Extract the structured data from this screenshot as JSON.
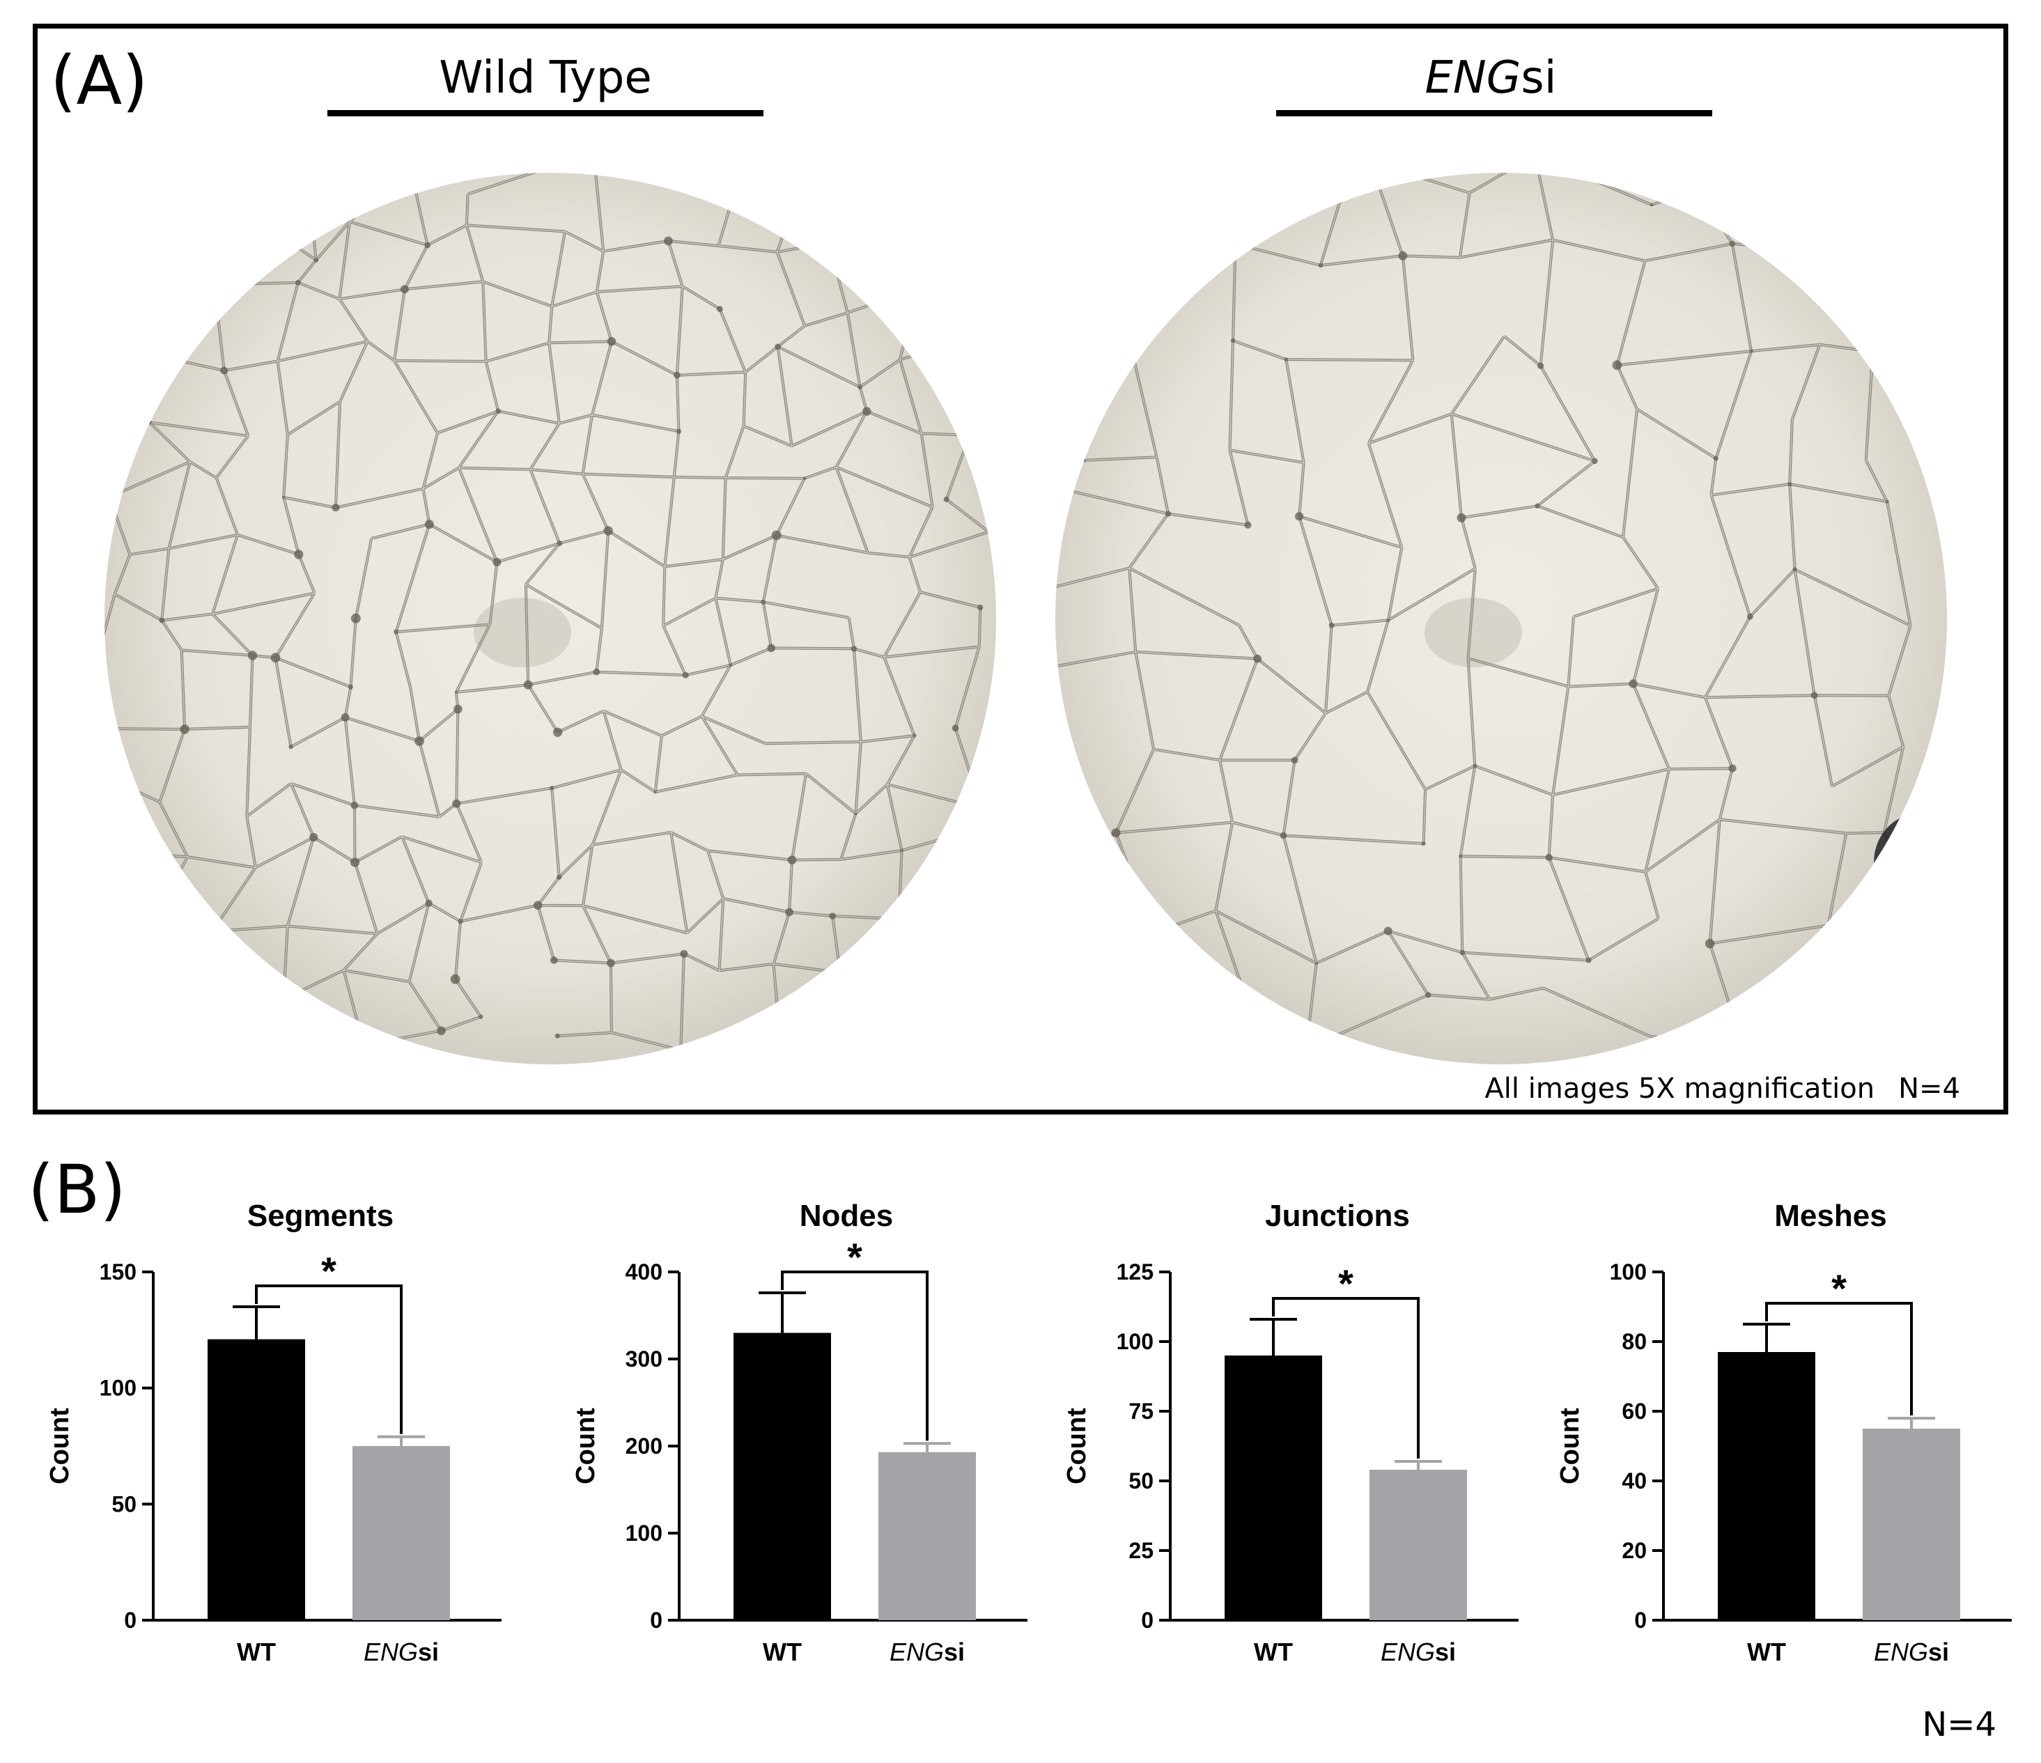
{
  "panelA": {
    "label": "(A)",
    "groups": [
      {
        "title": "Wild Type",
        "italic": "",
        "suffix": ""
      },
      {
        "title": "",
        "italic": "ENG",
        "suffix": "si"
      }
    ],
    "footnote": "All images 5X magnification",
    "n": "N=4"
  },
  "panelB": {
    "label": "(B)",
    "n": "N=4"
  },
  "colors": {
    "wt": "#000000",
    "eng": "#a4a3a8",
    "dish": "#e6e3da",
    "network": "#6f6a60"
  },
  "chart_data": [
    {
      "type": "bar",
      "title": "Segments",
      "ylabel": "Count",
      "ylim": [
        0,
        150
      ],
      "yticks": [
        0,
        50,
        100,
        150
      ],
      "categories": [
        {
          "italic": "",
          "text": "WT"
        },
        {
          "italic": "ENG",
          "text": "si"
        }
      ],
      "values": [
        121,
        75
      ],
      "errors": [
        14,
        4
      ],
      "significance": "*"
    },
    {
      "type": "bar",
      "title": "Nodes",
      "ylabel": "Count",
      "ylim": [
        0,
        400
      ],
      "yticks": [
        0,
        100,
        200,
        300,
        400
      ],
      "categories": [
        {
          "italic": "",
          "text": "WT"
        },
        {
          "italic": "ENG",
          "text": "si"
        }
      ],
      "values": [
        330,
        193
      ],
      "errors": [
        46,
        10
      ],
      "significance": "*"
    },
    {
      "type": "bar",
      "title": "Junctions",
      "ylabel": "Count",
      "ylim": [
        0,
        125
      ],
      "yticks": [
        0,
        25,
        50,
        75,
        100,
        125
      ],
      "categories": [
        {
          "italic": "",
          "text": "WT"
        },
        {
          "italic": "ENG",
          "text": "si"
        }
      ],
      "values": [
        95,
        54
      ],
      "errors": [
        13,
        3
      ],
      "significance": "*"
    },
    {
      "type": "bar",
      "title": "Meshes",
      "ylabel": "Count",
      "ylim": [
        0,
        100
      ],
      "yticks": [
        0,
        20,
        40,
        60,
        80,
        100
      ],
      "categories": [
        {
          "italic": "",
          "text": "WT"
        },
        {
          "italic": "ENG",
          "text": "si"
        }
      ],
      "values": [
        77,
        55
      ],
      "errors": [
        8,
        3
      ],
      "significance": "*"
    }
  ]
}
